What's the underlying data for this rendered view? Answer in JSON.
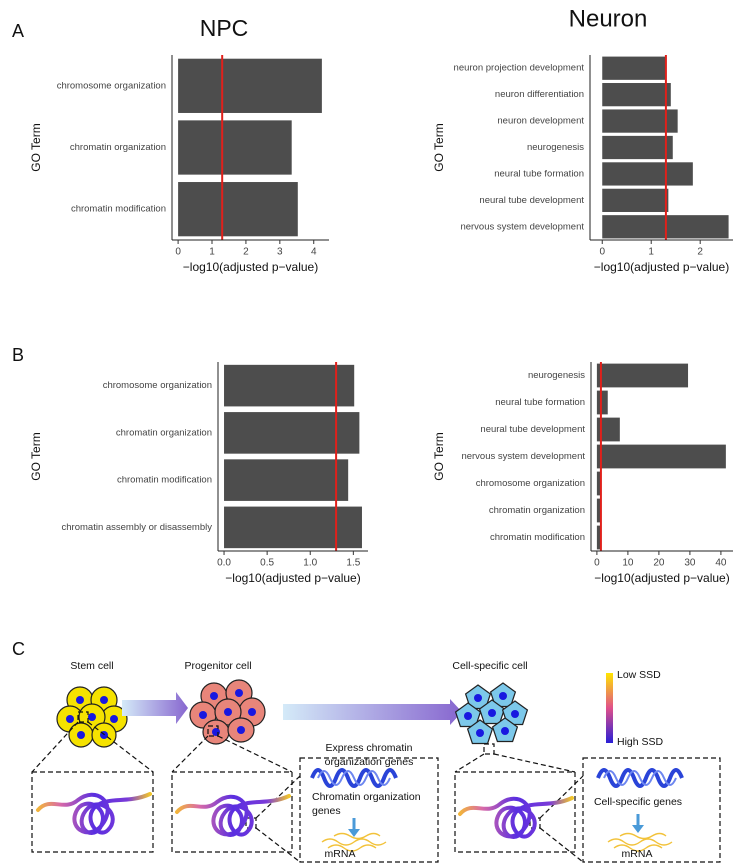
{
  "panel_labels": [
    "A",
    "B",
    "C"
  ],
  "column_titles": [
    "NPC",
    "Neuron"
  ],
  "chart_data": [
    {
      "type": "barh",
      "ylabel": "GO Term",
      "xlabel": "−log10(adjusted p−value)",
      "categories": [
        "chromosome organization",
        "chromatin organization",
        "chromatin modification"
      ],
      "values": [
        4.24,
        3.35,
        3.53
      ],
      "color": "#4d4d4d",
      "reference_line": {
        "value": 1.3,
        "color": "#e0201b"
      },
      "xlim": [
        -0.18,
        4.45
      ],
      "xticks": [
        0,
        1,
        2,
        3,
        4
      ]
    },
    {
      "type": "barh",
      "ylabel": "GO Term",
      "xlabel": "−log10(adjusted p−value)",
      "categories": [
        "neuron projection development",
        "neuron differentiation",
        "neuron development",
        "neurogenesis",
        "neural tube formation",
        "neural tube development",
        "nervous system development"
      ],
      "values": [
        1.31,
        1.4,
        1.54,
        1.44,
        1.85,
        1.35,
        2.58
      ],
      "color": "#4d4d4d",
      "reference_line": {
        "value": 1.3,
        "color": "#e0201b"
      },
      "xlim": [
        -0.25,
        2.67
      ],
      "xticks": [
        0,
        1,
        2
      ]
    },
    {
      "type": "barh",
      "ylabel": "GO Term",
      "xlabel": "−log10(adjusted p−value)",
      "categories": [
        "chromosome organization",
        "chromatin organization",
        "chromatin modification",
        "chromatin assembly or disassembly"
      ],
      "values": [
        1.51,
        1.57,
        1.44,
        1.6
      ],
      "color": "#4d4d4d",
      "reference_line": {
        "value": 1.3,
        "color": "#e0201b"
      },
      "xlim": [
        -0.07,
        1.67
      ],
      "xticks": [
        {
          "value": 0,
          "label": "0.0"
        },
        0.5,
        {
          "value": 1,
          "label": "1.0"
        },
        1.5
      ]
    },
    {
      "type": "barh",
      "ylabel": "GO Term",
      "xlabel": "−log10(adjusted p−value)",
      "categories": [
        "neurogenesis",
        "neural tube formation",
        "neural tube development",
        "nervous system development",
        "chromosome organization",
        "chromatin organization",
        "chromatin modification"
      ],
      "values": [
        29.4,
        3.5,
        7.4,
        41.6,
        1.0,
        1.0,
        1.3
      ],
      "color": "#4d4d4d",
      "reference_line": {
        "value": 1.3,
        "color": "#e0201b"
      },
      "xlim": [
        -1.9,
        43.9
      ],
      "xticks": [
        0,
        10,
        20,
        30,
        40
      ]
    }
  ],
  "diagram": {
    "stem_cell": "Stem cell",
    "progenitor_cell": "Progenitor cell",
    "cell_specific_cell": "Cell-specific cell",
    "arrow_label": [
      "Express chromatin",
      "organization genes"
    ],
    "legend_low": "Low SSD",
    "legend_high": "High SSD",
    "gene_label_1": [
      "Chromatin organization",
      "genes"
    ],
    "mrna_1": "mRNA",
    "gene_label_2": "Cell-specific genes",
    "mrna_2": "mRNA"
  }
}
